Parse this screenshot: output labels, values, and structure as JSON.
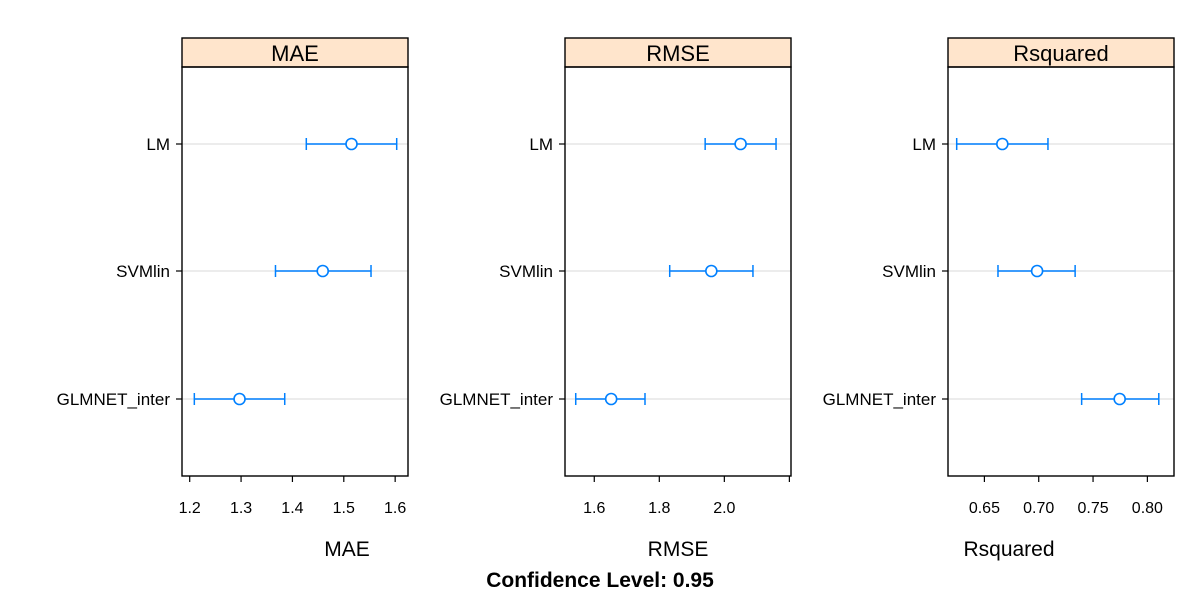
{
  "footer": "Confidence Level: 0.95",
  "colors": {
    "strip": "#ffe5cc",
    "marker": "#0080ff",
    "gridline": "#e6e6e6",
    "frame": "#000000"
  },
  "chart_data": [
    {
      "type": "dotplot-errorbar",
      "title": "MAE",
      "xlabel": "MAE",
      "xlim": [
        1.185,
        1.625
      ],
      "xticks": [
        1.2,
        1.3,
        1.4,
        1.5,
        1.6
      ],
      "tick_labels": [
        "1.2",
        "1.3",
        "1.4",
        "1.5",
        "1.6"
      ],
      "categories": [
        "LM",
        "SVMlin",
        "GLMNET_inter"
      ],
      "estimate": [
        1.515,
        1.459,
        1.297
      ],
      "lower": [
        1.427,
        1.367,
        1.209
      ],
      "upper": [
        1.603,
        1.553,
        1.385
      ]
    },
    {
      "type": "dotplot-errorbar",
      "title": "RMSE",
      "xlabel": "RMSE",
      "xlim": [
        1.51,
        2.205
      ],
      "xticks": [
        1.6,
        1.8,
        2.0,
        2.2
      ],
      "tick_labels": [
        "1.6",
        "1.8",
        "2.0",
        ""
      ],
      "categories": [
        "LM",
        "SVMlin",
        "GLMNET_inter"
      ],
      "estimate": [
        2.05,
        1.96,
        1.652
      ],
      "lower": [
        1.941,
        1.832,
        1.543
      ],
      "upper": [
        2.159,
        2.088,
        1.756
      ]
    },
    {
      "type": "dotplot-errorbar",
      "title": "Rsquared",
      "xlabel": "Rsquared",
      "xlim": [
        0.6165,
        0.8245
      ],
      "xticks": [
        0.65,
        0.7,
        0.75,
        0.8
      ],
      "tick_labels": [
        "0.65",
        "0.70",
        "0.75",
        "0.80"
      ],
      "categories": [
        "LM",
        "SVMlin",
        "GLMNET_inter"
      ],
      "estimate": [
        0.6665,
        0.6985,
        0.7745
      ],
      "lower": [
        0.6245,
        0.6625,
        0.7395
      ],
      "upper": [
        0.7085,
        0.7335,
        0.8105
      ]
    }
  ]
}
